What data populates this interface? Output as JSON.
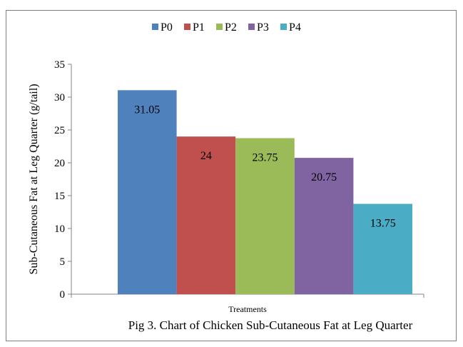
{
  "chart_data": {
    "type": "bar",
    "title": "",
    "caption": "Pig 3. Chart of Chicken Sub-Cutaneous Fat at Leg Quarter",
    "xlabel": "Treatments",
    "ylabel": "Sub-Cutaneous Fat at Leg  Quarter (g/tail)",
    "ylim": [
      0,
      35
    ],
    "yticks": [
      0,
      5,
      10,
      15,
      20,
      25,
      30,
      35
    ],
    "grid": false,
    "legend_position": "top",
    "series": [
      {
        "name": "P0",
        "values": [
          31.05
        ],
        "label": "31.05",
        "color": "#4f81bd"
      },
      {
        "name": "P1",
        "values": [
          24
        ],
        "label": "24",
        "color": "#c0504d"
      },
      {
        "name": "P2",
        "values": [
          23.75
        ],
        "label": "23.75",
        "color": "#9bbb59"
      },
      {
        "name": "P3",
        "values": [
          20.75
        ],
        "label": "20.75",
        "color": "#8064a2"
      },
      {
        "name": "P4",
        "values": [
          13.75
        ],
        "label": "13.75",
        "color": "#4bacc6"
      }
    ]
  }
}
